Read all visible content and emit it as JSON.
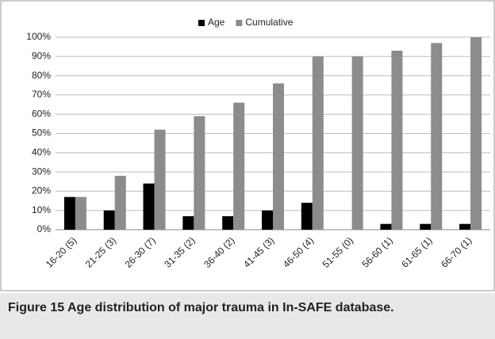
{
  "chart_data": {
    "type": "bar",
    "categories": [
      "16-20 (5)",
      "21-25 (3)",
      "26-30 (7)",
      "31-35 (2)",
      "36-40 (2)",
      "41-45 (3)",
      "46-50 (4)",
      "51-55 (0)",
      "56-60 (1)",
      "61-65 (1)",
      "66-70 (1)"
    ],
    "series": [
      {
        "name": "Age",
        "color": "#000000",
        "values": [
          17,
          10,
          24,
          7,
          7,
          10,
          14,
          0,
          3,
          3,
          3
        ]
      },
      {
        "name": "Cumulative",
        "color": "#8c8c8c",
        "values": [
          17,
          28,
          52,
          59,
          66,
          76,
          90,
          90,
          93,
          97,
          100
        ]
      }
    ],
    "ylim": [
      0,
      100
    ],
    "yticks": [
      {
        "value": 0,
        "label": "0%"
      },
      {
        "value": 10,
        "label": "10%"
      },
      {
        "value": 20,
        "label": "20%"
      },
      {
        "value": 30,
        "label": "30%"
      },
      {
        "value": 40,
        "label": "40%"
      },
      {
        "value": 50,
        "label": "50%"
      },
      {
        "value": 60,
        "label": "60%"
      },
      {
        "value": 70,
        "label": "70%"
      },
      {
        "value": 80,
        "label": "80%"
      },
      {
        "value": 90,
        "label": "90%"
      },
      {
        "value": 100,
        "label": "100%"
      }
    ],
    "grid": true,
    "legend": "top",
    "caption_label": "Figure 15",
    "caption": "Age distribution of major trauma in In-SAFE database."
  }
}
